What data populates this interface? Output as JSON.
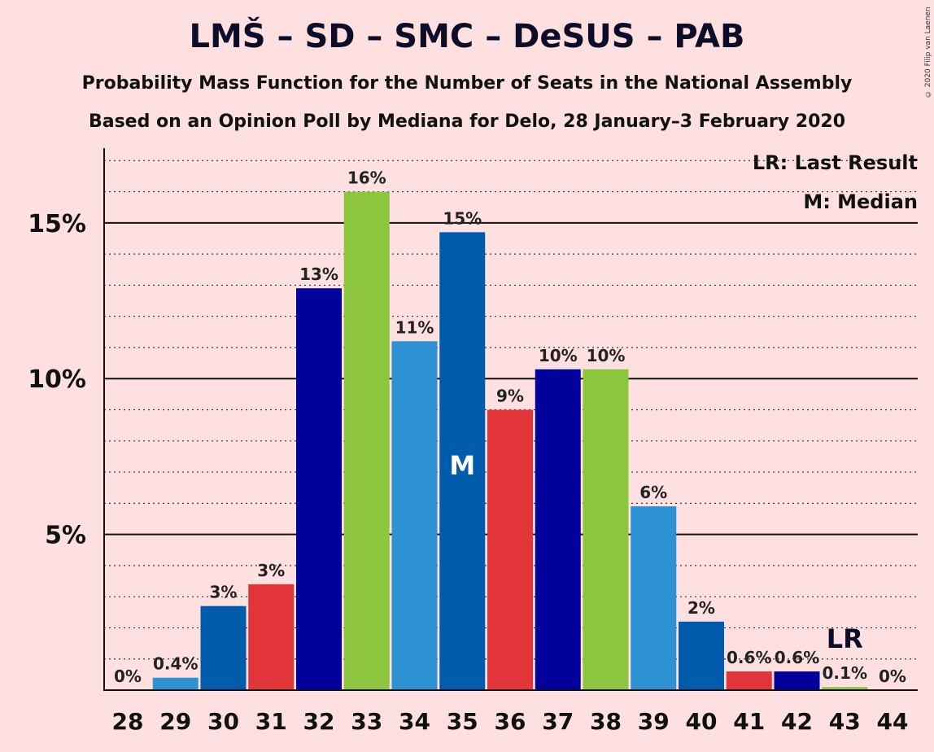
{
  "chart_data": {
    "type": "bar",
    "title": "LMŠ – SD – SMC – DeSUS – PAB",
    "subtitle": "Probability Mass Function for the Number of Seats in the National Assembly",
    "subtitle2": "Based on an Opinion Poll by Mediana for Delo, 28 January–3 February 2020",
    "copyright": "© 2020 Filip van Laenen",
    "categories": [
      "28",
      "29",
      "30",
      "31",
      "32",
      "33",
      "34",
      "35",
      "36",
      "37",
      "38",
      "39",
      "40",
      "41",
      "42",
      "43",
      "44"
    ],
    "values": [
      0,
      0.4,
      2.7,
      3.4,
      12.9,
      16.0,
      11.2,
      14.7,
      9.0,
      10.3,
      10.3,
      5.9,
      2.2,
      0.6,
      0.6,
      0.1,
      0
    ],
    "data_labels": [
      "0%",
      "0.4%",
      "3%",
      "3%",
      "13%",
      "16%",
      "11%",
      "15%",
      "9%",
      "10%",
      "10%",
      "6%",
      "2%",
      "0.6%",
      "0.6%",
      "0.1%",
      "0%"
    ],
    "colors": [
      "#005bac",
      "#2d92d2",
      "#005bac",
      "#e2353a",
      "#00009a",
      "#8cc63f",
      "#2d92d2",
      "#005bac",
      "#e2353a",
      "#00009a",
      "#8cc63f",
      "#2d92d2",
      "#005bac",
      "#e2353a",
      "#00009a",
      "#8cc63f",
      "#2d92d2"
    ],
    "yticks": [
      5,
      10,
      15
    ],
    "ytick_labels": [
      "5%",
      "10%",
      "15%"
    ],
    "ylim": [
      0,
      17.4
    ],
    "median_seat": "35",
    "median_mark": "M",
    "last_result_seat": "43",
    "last_result_mark": "LR",
    "legend": [
      "LR: Last Result",
      "M: Median"
    ],
    "legend_position": "top-right",
    "grid": true
  }
}
